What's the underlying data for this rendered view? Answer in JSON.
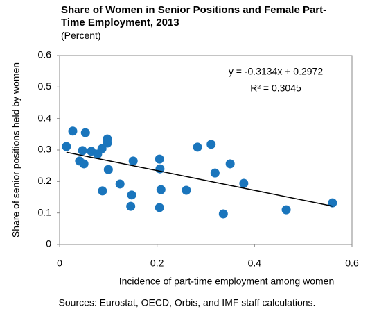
{
  "chart_data": {
    "type": "scatter",
    "title": "Share of Women in Senior Positions and Female Part-Time Employment, 2013",
    "subtitle": "(Percent)",
    "x_label": "Incidence of part-time employment among women",
    "y_label": "Share of senior positions held by women",
    "source": "Sources: Eurostat, OECD, Orbis, and IMF staff calculations.",
    "x": [
      0.014,
      0.027,
      0.041,
      0.047,
      0.05,
      0.053,
      0.065,
      0.078,
      0.087,
      0.088,
      0.098,
      0.098,
      0.1,
      0.124,
      0.151,
      0.148,
      0.146,
      0.205,
      0.206,
      0.208,
      0.205,
      0.26,
      0.283,
      0.311,
      0.319,
      0.35,
      0.336,
      0.378,
      0.465,
      0.56
    ],
    "series": [
      {
        "color": "#1a75bc",
        "values": [
          0.311,
          0.36,
          0.265,
          0.298,
          0.256,
          0.355,
          0.296,
          0.287,
          0.304,
          0.17,
          0.335,
          0.322,
          0.238,
          0.192,
          0.265,
          0.157,
          0.121,
          0.271,
          0.24,
          0.174,
          0.117,
          0.172,
          0.309,
          0.318,
          0.227,
          0.256,
          0.097,
          0.194,
          0.11,
          0.132
        ]
      }
    ],
    "trendline": {
      "slope": -0.3134,
      "intercept": 0.2972,
      "color": "#000000",
      "equation": "y = -0.3134x + 0.2972",
      "r2": "R² = 0.3045"
    },
    "xlim": [
      0,
      0.6
    ],
    "xticks": [
      0,
      0.2,
      0.4,
      0.6
    ],
    "ylim": [
      0,
      0.6
    ],
    "yticks": [
      0,
      0.1,
      0.2,
      0.3,
      0.4,
      0.5,
      0.6
    ],
    "grid": false
  }
}
